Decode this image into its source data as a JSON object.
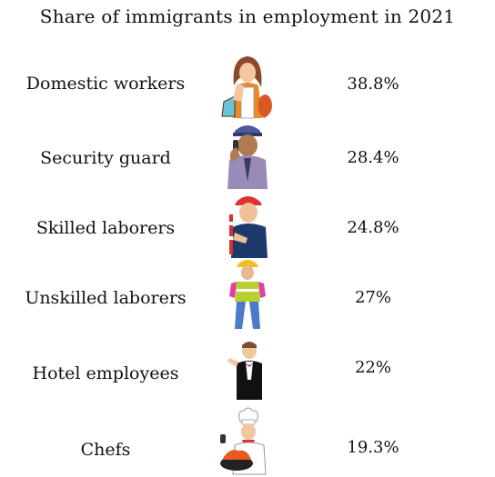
{
  "chart_data": {
    "type": "table",
    "title": "Share of immigrants in employment in 2021",
    "categories": [
      "Domestic workers",
      "Security guard",
      "Skilled laborers",
      "Unskilled laborers",
      "Hotel employees",
      "Chefs"
    ],
    "values": [
      38.8,
      28.4,
      24.8,
      27,
      22,
      19.3
    ],
    "value_labels": [
      "38.8%",
      "28.4%",
      "24.8%",
      "27%",
      "22%",
      "19.3%"
    ],
    "icons": [
      "housekeeper-icon",
      "security-guard-icon",
      "construction-worker-icon",
      "builder-icon",
      "waiter-icon",
      "chef-icon"
    ]
  }
}
